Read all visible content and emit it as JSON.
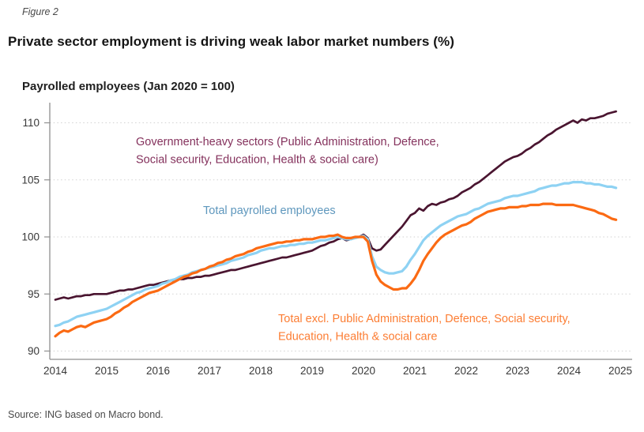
{
  "figure": {
    "label": "Figure 2",
    "title": "Private sector employment is driving weak labor market numbers (%)",
    "source": "Source: ING based on Macro bond."
  },
  "chart_data": {
    "type": "line",
    "title": "Payrolled employees (Jan 2020 = 100)",
    "x_start_year": 2014,
    "x_step_months": 1,
    "x_ticks": [
      2014,
      2015,
      2016,
      2017,
      2018,
      2019,
      2020,
      2021,
      2022,
      2023,
      2024,
      2025
    ],
    "y_ticks": [
      90,
      95,
      100,
      105,
      110
    ],
    "ylim": [
      89.3,
      111.8
    ],
    "grid": "horizontal dotted",
    "legend_position": "inline colored annotations",
    "axis_color": "#8f8f8f",
    "grid_color": "#d2d2d2",
    "tick_label_color": "#383838",
    "series": [
      {
        "id": "government",
        "name": "Government-heavy sectors (Public Administration, Defence, Social security, Education, Health & social care)",
        "label_lines": [
          "Government-heavy sectors (Public Administration, Defence,",
          "Social security, Education, Health & social care)"
        ],
        "color": "#4a1530",
        "label_color": "#84315c",
        "stroke_width": 2.7,
        "values": [
          94.5,
          94.6,
          94.7,
          94.6,
          94.7,
          94.8,
          94.8,
          94.9,
          94.9,
          95.0,
          95.0,
          95.0,
          95.0,
          95.1,
          95.2,
          95.3,
          95.3,
          95.4,
          95.4,
          95.5,
          95.6,
          95.7,
          95.8,
          95.8,
          95.9,
          96.0,
          96.1,
          96.2,
          96.2,
          96.3,
          96.3,
          96.4,
          96.4,
          96.5,
          96.5,
          96.6,
          96.6,
          96.7,
          96.8,
          96.9,
          97.0,
          97.1,
          97.1,
          97.2,
          97.3,
          97.4,
          97.5,
          97.6,
          97.7,
          97.8,
          97.9,
          98.0,
          98.1,
          98.2,
          98.2,
          98.3,
          98.4,
          98.5,
          98.6,
          98.7,
          98.8,
          99.0,
          99.2,
          99.3,
          99.5,
          99.6,
          99.8,
          99.9,
          99.7,
          99.8,
          99.9,
          100.0,
          100.2,
          99.9,
          99.0,
          98.8,
          98.9,
          99.3,
          99.7,
          100.1,
          100.5,
          100.9,
          101.4,
          101.9,
          102.1,
          102.5,
          102.3,
          102.7,
          102.9,
          102.8,
          103.0,
          103.1,
          103.3,
          103.4,
          103.6,
          103.9,
          104.1,
          104.3,
          104.6,
          104.8,
          105.1,
          105.4,
          105.7,
          106.0,
          106.3,
          106.6,
          106.8,
          107.0,
          107.1,
          107.3,
          107.6,
          107.8,
          108.1,
          108.3,
          108.6,
          108.9,
          109.1,
          109.4,
          109.6,
          109.8,
          110.0,
          110.2,
          110.0,
          110.3,
          110.2,
          110.4,
          110.4,
          110.5,
          110.6,
          110.8,
          110.9,
          111.0
        ]
      },
      {
        "id": "total",
        "name": "Total payrolled employees",
        "label_lines": [
          "Total payrolled employees"
        ],
        "color": "#8ed2f3",
        "label_color": "#5e97bd",
        "stroke_width": 3.2,
        "values": [
          92.2,
          92.3,
          92.5,
          92.6,
          92.8,
          93.0,
          93.1,
          93.2,
          93.3,
          93.4,
          93.5,
          93.6,
          93.7,
          93.9,
          94.1,
          94.3,
          94.5,
          94.7,
          94.9,
          95.1,
          95.2,
          95.4,
          95.5,
          95.6,
          95.7,
          95.9,
          96.0,
          96.2,
          96.3,
          96.5,
          96.6,
          96.7,
          96.9,
          97.0,
          97.1,
          97.2,
          97.3,
          97.4,
          97.5,
          97.6,
          97.7,
          97.9,
          98.0,
          98.1,
          98.2,
          98.4,
          98.5,
          98.6,
          98.8,
          98.9,
          99.0,
          99.0,
          99.1,
          99.2,
          99.2,
          99.3,
          99.3,
          99.4,
          99.4,
          99.5,
          99.5,
          99.6,
          99.7,
          99.7,
          99.8,
          99.9,
          100.0,
          99.9,
          99.8,
          99.8,
          99.9,
          100.0,
          100.1,
          99.8,
          98.3,
          97.4,
          97.1,
          96.9,
          96.8,
          96.8,
          96.9,
          97.0,
          97.4,
          98.0,
          98.5,
          99.1,
          99.7,
          100.1,
          100.4,
          100.7,
          101.0,
          101.2,
          101.4,
          101.6,
          101.8,
          101.9,
          102.0,
          102.2,
          102.4,
          102.5,
          102.7,
          102.9,
          103.0,
          103.1,
          103.2,
          103.4,
          103.5,
          103.6,
          103.6,
          103.7,
          103.8,
          103.9,
          104.0,
          104.2,
          104.3,
          104.4,
          104.5,
          104.5,
          104.6,
          104.7,
          104.7,
          104.8,
          104.8,
          104.8,
          104.7,
          104.7,
          104.6,
          104.6,
          104.5,
          104.4,
          104.4,
          104.3
        ]
      },
      {
        "id": "total_excl",
        "name": "Total excl. Public Administration, Defence, Social security, Education, Health & social care",
        "label_lines": [
          "Total excl. Public Administration, Defence, Social security,",
          "Education, Health & social care"
        ],
        "color": "#fb6a13",
        "label_color": "#fc7d33",
        "stroke_width": 3.2,
        "values": [
          91.3,
          91.6,
          91.8,
          91.7,
          91.9,
          92.1,
          92.2,
          92.1,
          92.3,
          92.5,
          92.6,
          92.7,
          92.8,
          93.0,
          93.3,
          93.5,
          93.8,
          94.0,
          94.3,
          94.5,
          94.7,
          94.9,
          95.1,
          95.2,
          95.3,
          95.5,
          95.7,
          95.9,
          96.1,
          96.3,
          96.5,
          96.6,
          96.8,
          96.9,
          97.1,
          97.2,
          97.4,
          97.5,
          97.7,
          97.8,
          98.0,
          98.1,
          98.3,
          98.4,
          98.5,
          98.7,
          98.8,
          99.0,
          99.1,
          99.2,
          99.3,
          99.4,
          99.5,
          99.5,
          99.6,
          99.6,
          99.7,
          99.7,
          99.8,
          99.8,
          99.8,
          99.9,
          100.0,
          100.0,
          100.1,
          100.1,
          100.2,
          100.0,
          99.9,
          99.9,
          100.0,
          100.0,
          100.0,
          99.6,
          97.9,
          96.7,
          96.1,
          95.8,
          95.6,
          95.4,
          95.4,
          95.5,
          95.5,
          95.9,
          96.4,
          97.1,
          97.9,
          98.5,
          99.0,
          99.5,
          99.9,
          100.2,
          100.4,
          100.6,
          100.8,
          101.0,
          101.1,
          101.3,
          101.6,
          101.8,
          102.0,
          102.2,
          102.3,
          102.4,
          102.5,
          102.5,
          102.6,
          102.6,
          102.6,
          102.7,
          102.7,
          102.8,
          102.8,
          102.8,
          102.9,
          102.9,
          102.9,
          102.8,
          102.8,
          102.8,
          102.8,
          102.8,
          102.7,
          102.6,
          102.5,
          102.4,
          102.3,
          102.1,
          102.0,
          101.8,
          101.6,
          101.5
        ]
      }
    ]
  }
}
